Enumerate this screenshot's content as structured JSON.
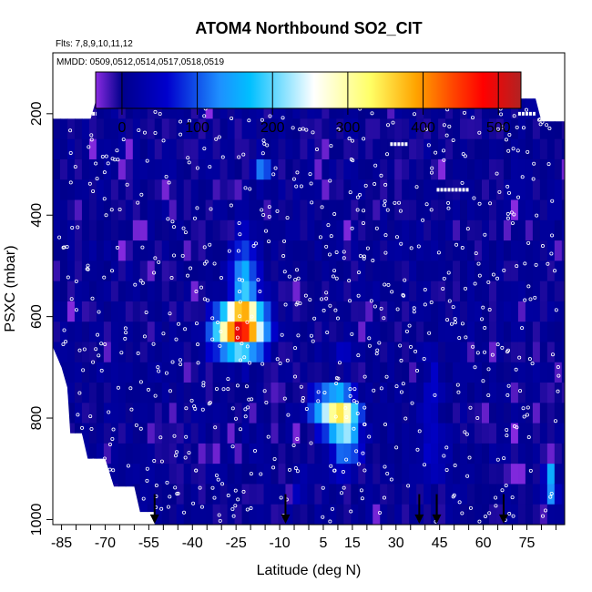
{
  "chart_data": {
    "type": "heatmap",
    "title": "ATOM4 Northbound SO2_CIT",
    "subtitle_flights": "Flts: 7,8,9,10,11,12",
    "subtitle_dates": "MMDD: 0509,0512,0514,0517,0518,0519",
    "xlabel": "Latitude (deg N)",
    "ylabel": "PSXC (mbar)",
    "xlim": [
      -88,
      88
    ],
    "ylim": [
      1010,
      80
    ],
    "x_ticks": [
      -85,
      -70,
      -55,
      -40,
      -25,
      -10,
      5,
      15,
      30,
      45,
      60,
      75
    ],
    "x_ticks_minor_step": 5,
    "y_ticks": [
      200,
      400,
      600,
      800,
      1000
    ],
    "colorbar": {
      "range": [
        -35,
        530
      ],
      "ticks": [
        0,
        100,
        200,
        300,
        400,
        500
      ],
      "colors": [
        "#8a2be2",
        "#00008b",
        "#0000cd",
        "#1e90ff",
        "#00bfff",
        "#ffffff",
        "#ffff66",
        "#ffa500",
        "#ff4500",
        "#ff0000",
        "#b22222"
      ],
      "color_stops": [
        -35,
        0,
        60,
        130,
        170,
        255,
        330,
        390,
        440,
        480,
        530
      ]
    },
    "background_value": 5,
    "data_top_pressure": 170,
    "hotspots": [
      {
        "lat": -24,
        "p": 625,
        "value": 400,
        "dlat": 9,
        "dp": 45
      },
      {
        "lat": -22,
        "p": 560,
        "value": 175,
        "dlat": 5,
        "dp": 100
      },
      {
        "lat": -16,
        "p": 310,
        "value": 110,
        "dlat": 3,
        "dp": 30
      },
      {
        "lat": 9,
        "p": 785,
        "value": 290,
        "dlat": 7,
        "dp": 40
      },
      {
        "lat": 13,
        "p": 840,
        "value": 150,
        "dlat": 5,
        "dp": 60
      },
      {
        "lat": 83,
        "p": 930,
        "value": 220,
        "dlat": 2,
        "dp": 30
      },
      {
        "lat": 42,
        "p": 730,
        "value": 60,
        "dlat": 3,
        "dp": 80
      },
      {
        "lat": -3,
        "p": 940,
        "value": 40,
        "dlat": 4,
        "dp": 30
      },
      {
        "lat": 12,
        "p": 665,
        "value": 35,
        "dlat": 3,
        "dp": 25
      },
      {
        "lat": 42,
        "p": 860,
        "value": 45,
        "dlat": 5,
        "dp": 60
      }
    ],
    "flight_tracks": [
      {
        "p": 180,
        "lat_from": -70,
        "lat_to": -60
      },
      {
        "p": 200,
        "lat_from": -77,
        "lat_to": -73
      },
      {
        "p": 260,
        "lat_from": 28,
        "lat_to": 34
      },
      {
        "p": 350,
        "lat_from": 44,
        "lat_to": 55
      },
      {
        "p": 200,
        "lat_from": 72,
        "lat_to": 78
      }
    ],
    "marker_latitudes": [
      -53,
      -8,
      38,
      44,
      67
    ]
  }
}
